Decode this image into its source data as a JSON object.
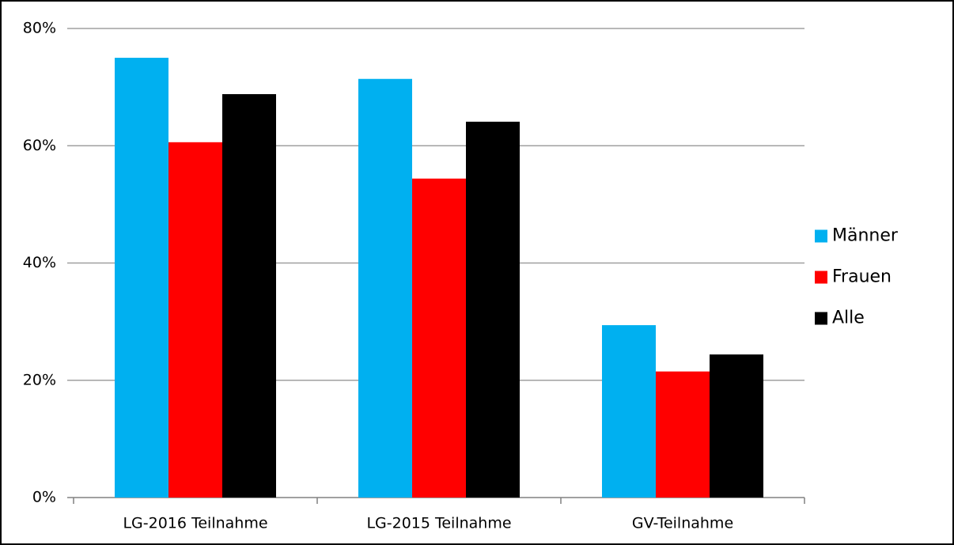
{
  "chart_data": {
    "type": "bar",
    "categories": [
      "LG-2016 Teilnahme",
      "LG-2015 Teilnahme",
      "GV-Teilnahme"
    ],
    "series": [
      {
        "name": "Männer",
        "color": "#00b0f0",
        "values": [
          75.0,
          71.4,
          29.4
        ]
      },
      {
        "name": "Frauen",
        "color": "#ff0000",
        "values": [
          60.6,
          54.4,
          21.5
        ]
      },
      {
        "name": "Alle",
        "color": "#000000",
        "values": [
          68.8,
          64.1,
          24.4
        ]
      }
    ],
    "ylim": [
      0,
      80
    ],
    "yticks": [
      {
        "value": 0,
        "label": "0%"
      },
      {
        "value": 20,
        "label": "20%"
      },
      {
        "value": 40,
        "label": "40%"
      },
      {
        "value": 60,
        "label": "60%"
      },
      {
        "value": 80,
        "label": "80%"
      }
    ],
    "grid": true,
    "legend": "right"
  }
}
